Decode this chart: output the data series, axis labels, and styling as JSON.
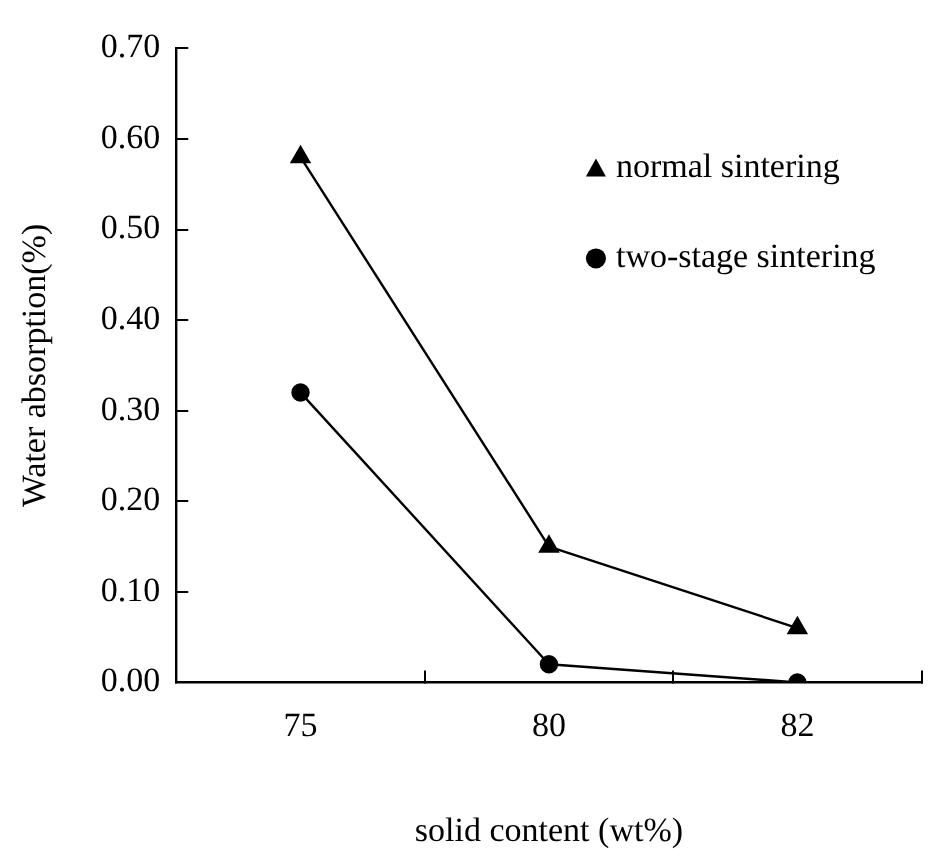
{
  "chart_data": {
    "type": "line",
    "xlabel": "solid content (wt%)",
    "ylabel": "Water absorption(%)",
    "categories": [
      "75",
      "80",
      "82"
    ],
    "series": [
      {
        "name": "normal sintering",
        "color": "#000000",
        "marker": "triangle",
        "values": [
          0.58,
          0.15,
          0.06
        ]
      },
      {
        "name": "two-stage sintering",
        "color": "#000000",
        "marker": "circle",
        "values": [
          0.32,
          0.02,
          0.0
        ]
      }
    ],
    "ylim": [
      0,
      0.7
    ],
    "yticks": [
      {
        "value": 0,
        "label": "0.00"
      },
      {
        "value": 0.1,
        "label": "0.10"
      },
      {
        "value": 0.2,
        "label": "0.20"
      },
      {
        "value": 0.3,
        "label": "0.30"
      },
      {
        "value": 0.4,
        "label": "0.40"
      },
      {
        "value": 0.5,
        "label": "0.50"
      },
      {
        "value": 0.6,
        "label": "0.60"
      },
      {
        "value": 0.7,
        "label": "0.70"
      }
    ],
    "grid": false,
    "legend": "top right",
    "line_style": "solid"
  }
}
